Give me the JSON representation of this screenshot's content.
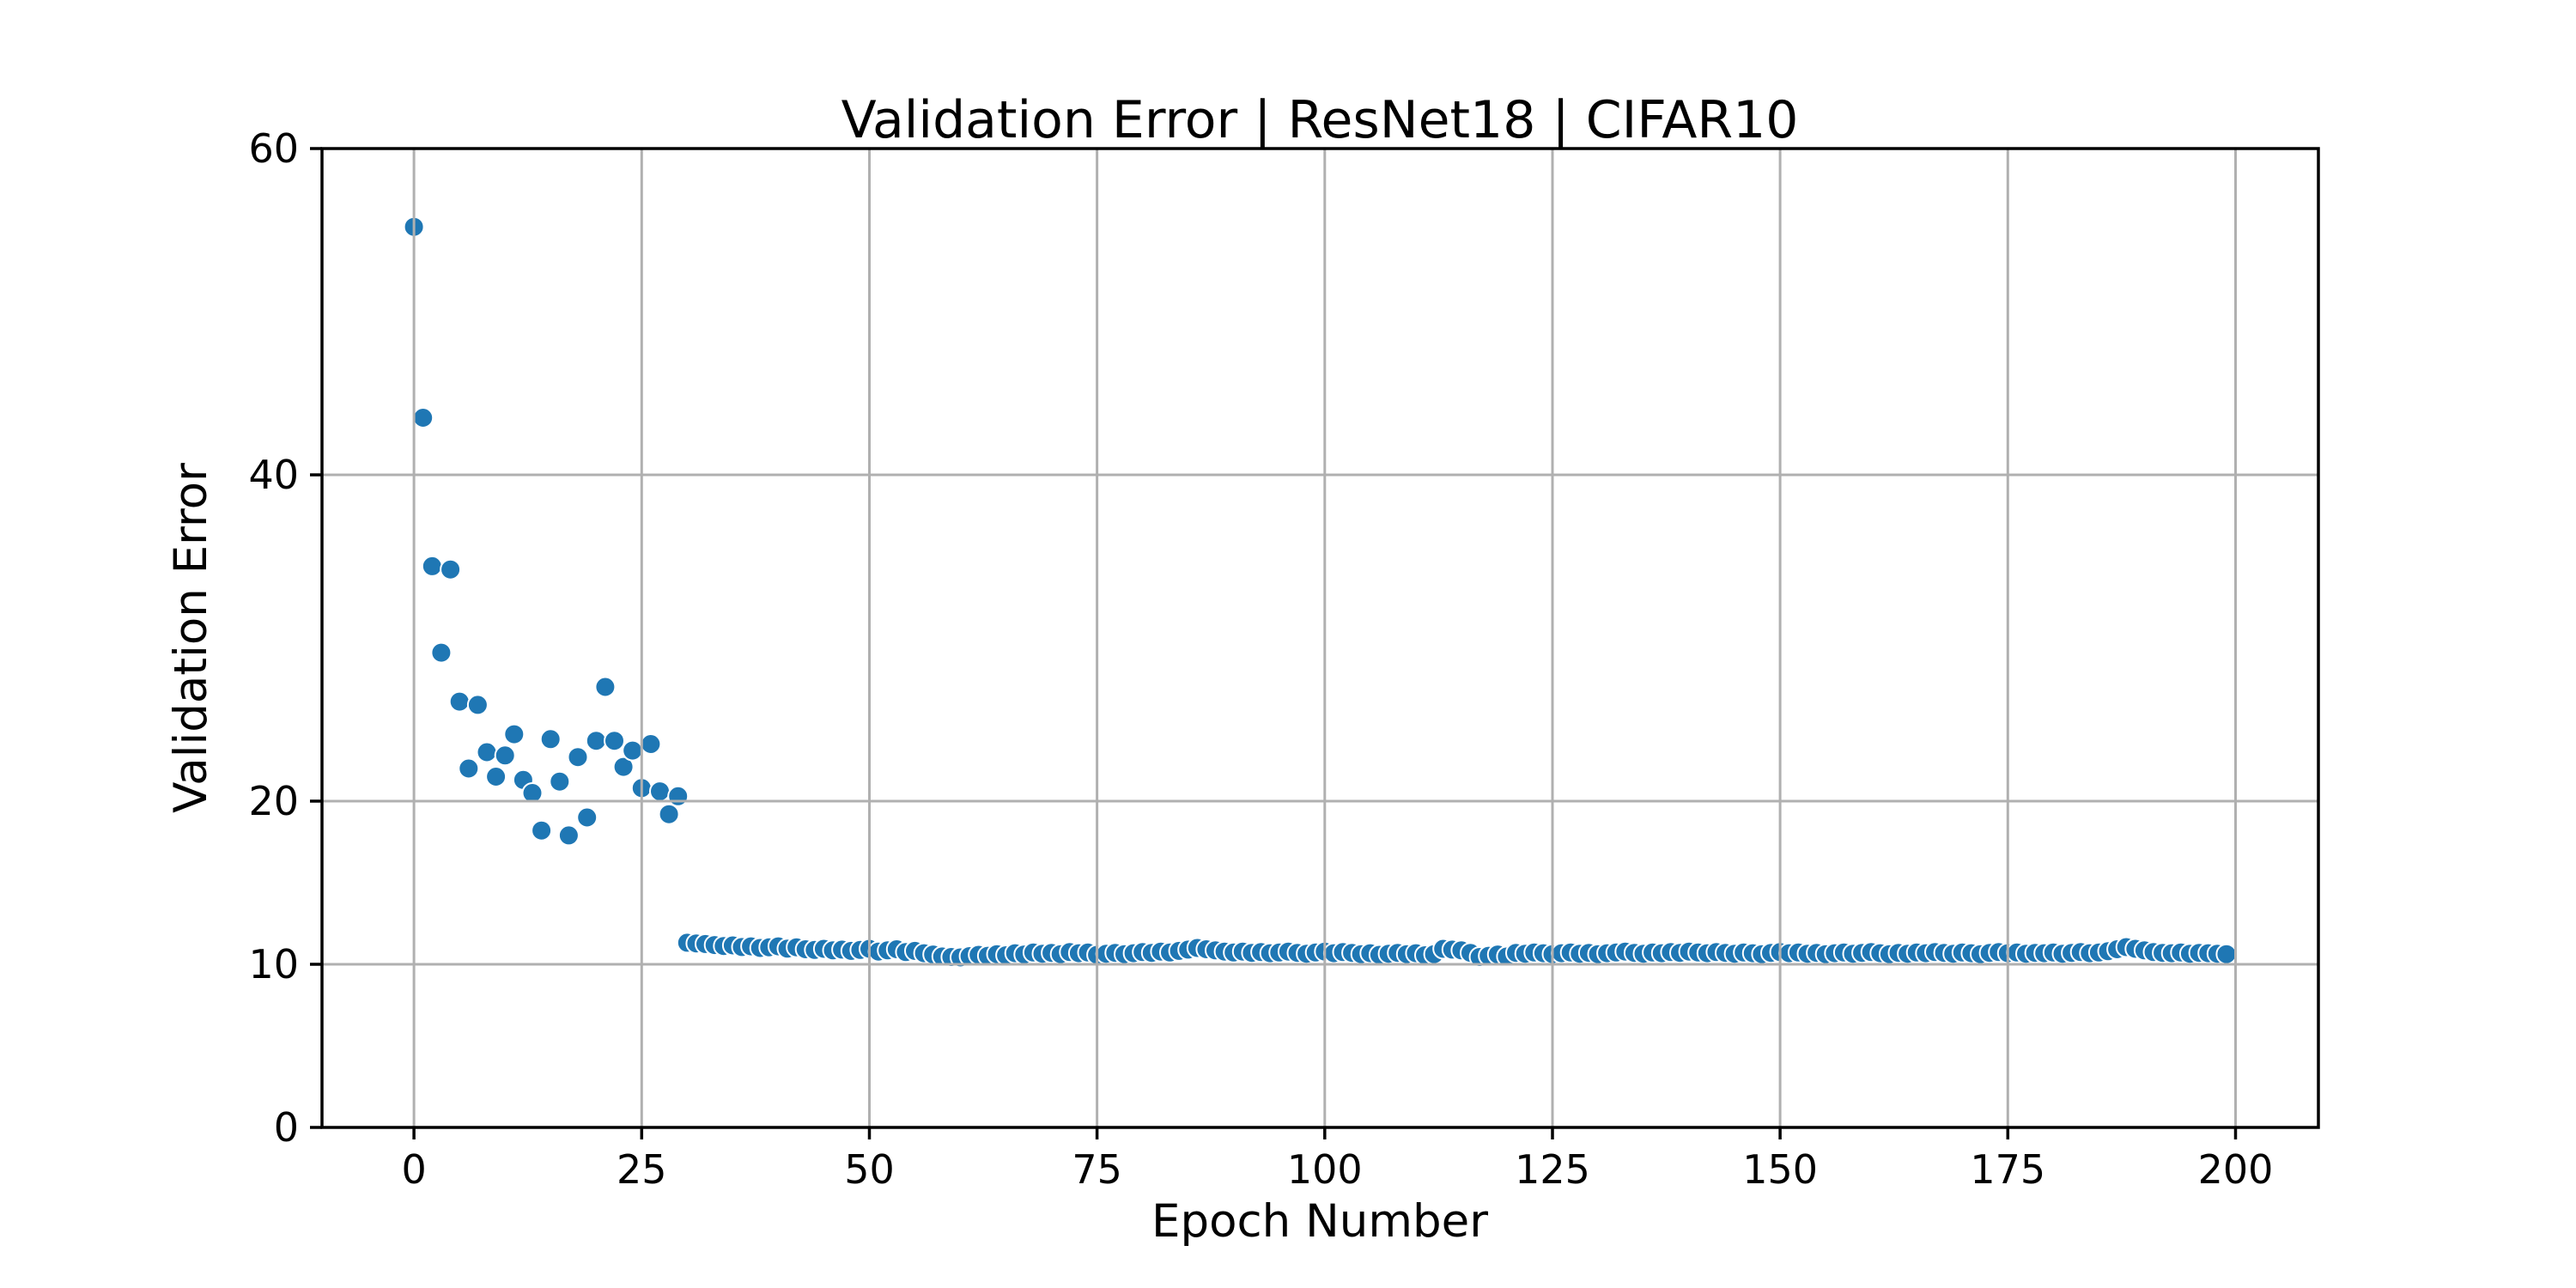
{
  "figure": {
    "background": "#ffffff",
    "text_color": "#000000"
  },
  "chart_data": {
    "type": "scatter",
    "title": "Validation Error | ResNet18 | CIFAR10",
    "xlabel": "Epoch Number",
    "ylabel": "Validation Error",
    "xlim": [
      -10.1,
      209.1
    ],
    "ylim": [
      0,
      60
    ],
    "xticks": [
      0,
      25,
      50,
      75,
      100,
      125,
      150,
      175,
      200
    ],
    "yticks": [
      0,
      10,
      20,
      40,
      60
    ],
    "grid": true,
    "grid_above_points": true,
    "legend_position": "none",
    "marker_color": "#1f77b4",
    "marker_edge_color": "#ffffff",
    "grid_color": "#b0b0b0",
    "spine_color": "#000000",
    "x_values": "epoch index 0..199",
    "values": [
      55.2,
      43.5,
      34.4,
      29.1,
      34.2,
      26.1,
      22.0,
      25.9,
      23.0,
      21.5,
      22.8,
      24.1,
      21.3,
      20.5,
      18.2,
      23.8,
      21.2,
      17.9,
      22.7,
      19.0,
      23.7,
      27.0,
      23.7,
      22.1,
      23.1,
      20.8,
      23.5,
      20.6,
      19.2,
      20.3,
      11.32,
      11.28,
      11.24,
      11.18,
      11.12,
      11.16,
      11.06,
      11.1,
      11.0,
      11.04,
      11.1,
      10.96,
      11.04,
      10.92,
      10.88,
      10.95,
      10.85,
      10.9,
      10.82,
      10.88,
      10.95,
      10.78,
      10.85,
      10.92,
      10.75,
      10.82,
      10.68,
      10.6,
      10.48,
      10.45,
      10.42,
      10.5,
      10.58,
      10.52,
      10.62,
      10.55,
      10.68,
      10.6,
      10.72,
      10.65,
      10.7,
      10.62,
      10.75,
      10.68,
      10.72,
      10.58,
      10.65,
      10.7,
      10.62,
      10.68,
      10.75,
      10.7,
      10.78,
      10.72,
      10.82,
      10.9,
      11.0,
      10.92,
      10.85,
      10.78,
      10.72,
      10.78,
      10.7,
      10.75,
      10.68,
      10.72,
      10.78,
      10.7,
      10.65,
      10.72,
      10.78,
      10.68,
      10.75,
      10.7,
      10.62,
      10.68,
      10.58,
      10.65,
      10.7,
      10.62,
      10.68,
      10.55,
      10.62,
      10.95,
      10.9,
      10.85,
      10.7,
      10.45,
      10.52,
      10.6,
      10.48,
      10.7,
      10.65,
      10.72,
      10.68,
      10.62,
      10.68,
      10.72,
      10.65,
      10.7,
      10.62,
      10.68,
      10.72,
      10.78,
      10.7,
      10.65,
      10.72,
      10.68,
      10.75,
      10.7,
      10.78,
      10.72,
      10.68,
      10.75,
      10.7,
      10.65,
      10.72,
      10.68,
      10.62,
      10.7,
      10.75,
      10.68,
      10.72,
      10.65,
      10.7,
      10.62,
      10.68,
      10.72,
      10.65,
      10.7,
      10.75,
      10.68,
      10.62,
      10.7,
      10.65,
      10.72,
      10.68,
      10.75,
      10.7,
      10.65,
      10.72,
      10.68,
      10.62,
      10.7,
      10.75,
      10.68,
      10.72,
      10.65,
      10.7,
      10.68,
      10.72,
      10.65,
      10.7,
      10.75,
      10.68,
      10.72,
      10.8,
      10.92,
      11.05,
      10.95,
      10.85,
      10.75,
      10.7,
      10.68,
      10.72,
      10.65,
      10.7,
      10.68,
      10.65,
      10.62
    ]
  }
}
